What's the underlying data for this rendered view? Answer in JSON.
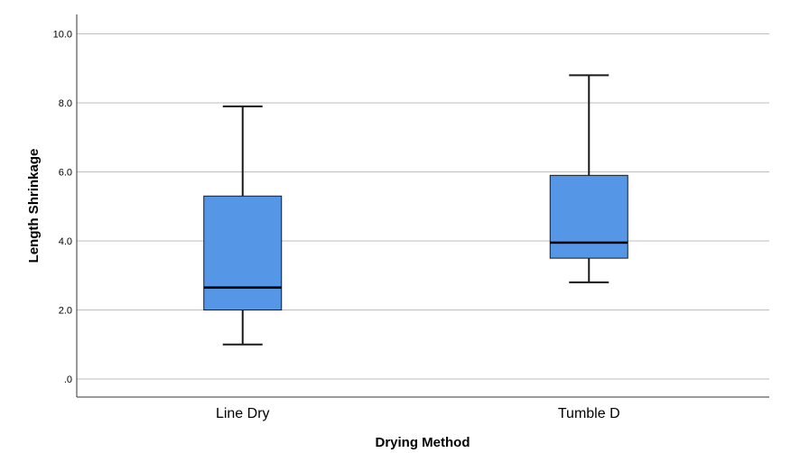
{
  "chart_data": {
    "type": "box",
    "title": "",
    "xlabel": "Drying Method",
    "ylabel": "Length Shrinkage",
    "ylim": [
      -0.5,
      10.5
    ],
    "yticks": [
      {
        "value": 0,
        "label": ".0"
      },
      {
        "value": 2,
        "label": "2.0"
      },
      {
        "value": 4,
        "label": "4.0"
      },
      {
        "value": 6,
        "label": "6.0"
      },
      {
        "value": 8,
        "label": "8.0"
      },
      {
        "value": 10,
        "label": "10.0"
      }
    ],
    "grid": true,
    "categories": [
      "Line Dry",
      "Tumble D"
    ],
    "boxes": [
      {
        "category": "Line Dry",
        "min": 1.0,
        "q1": 2.0,
        "median": 2.65,
        "q3": 5.3,
        "max": 7.9
      },
      {
        "category": "Tumble D",
        "min": 2.8,
        "q1": 3.5,
        "median": 3.95,
        "q3": 5.9,
        "max": 8.8
      }
    ],
    "colors": {
      "box_fill": "#5596e6",
      "box_stroke": "#1a1a1a",
      "grid": "#bebebe",
      "axis": "#333333"
    }
  }
}
